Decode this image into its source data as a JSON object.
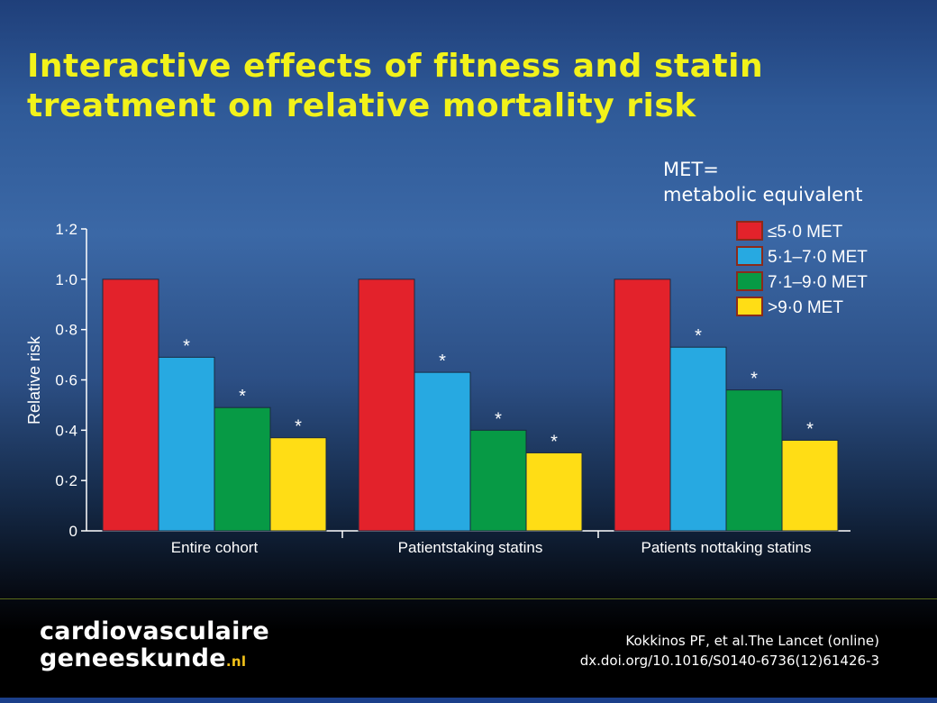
{
  "slide": {
    "title_line1": "Interactive effects of fitness and statin",
    "title_line2": "treatment on relative mortality risk",
    "met_note_line1": "MET=",
    "met_note_line2": "metabolic equivalent"
  },
  "footer": {
    "logo_line1": "cardiovasculaire",
    "logo_line2": "geneeskunde",
    "logo_tld": ".nl",
    "citation_line1": "Kokkinos PF, et al.The Lancet (online)",
    "citation_line2": "dx.doi.org/10.1016/S0140-6736(12)61426-3"
  },
  "colors": {
    "title": "#f2f21a",
    "red": "#e3222b",
    "blue": "#27a9e1",
    "green": "#079a45",
    "yellow": "#ffdd15",
    "legend_border": "#8b2a1a"
  },
  "chart_data": {
    "type": "bar",
    "categories": [
      "Entire cohort",
      "Patientstaking statins",
      "Patients nottaking statins"
    ],
    "ylabel": "Relative risk",
    "ylim": [
      0,
      1.2
    ],
    "yticks": [
      "0",
      "0·2",
      "0·4",
      "0·6",
      "0·8",
      "1·0",
      "1·2"
    ],
    "ytick_values": [
      0,
      0.2,
      0.4,
      0.6,
      0.8,
      1.0,
      1.2
    ],
    "legend_position": "top-right",
    "grid": false,
    "series": [
      {
        "name": "≤5·0 MET",
        "color": "#e3222b",
        "values": [
          1.0,
          1.0,
          1.0
        ],
        "marks": [
          "",
          "",
          ""
        ]
      },
      {
        "name": "5·1–7·0 MET",
        "color": "#27a9e1",
        "values": [
          0.69,
          0.63,
          0.73
        ],
        "marks": [
          "*",
          "*",
          "*"
        ]
      },
      {
        "name": "7·1–9·0 MET",
        "color": "#079a45",
        "values": [
          0.49,
          0.4,
          0.56
        ],
        "marks": [
          "*",
          "*",
          "*"
        ]
      },
      {
        "name": ">9·0 MET",
        "color": "#ffdd15",
        "values": [
          0.37,
          0.31,
          0.36
        ],
        "marks": [
          "*",
          "*",
          "*"
        ]
      }
    ]
  }
}
